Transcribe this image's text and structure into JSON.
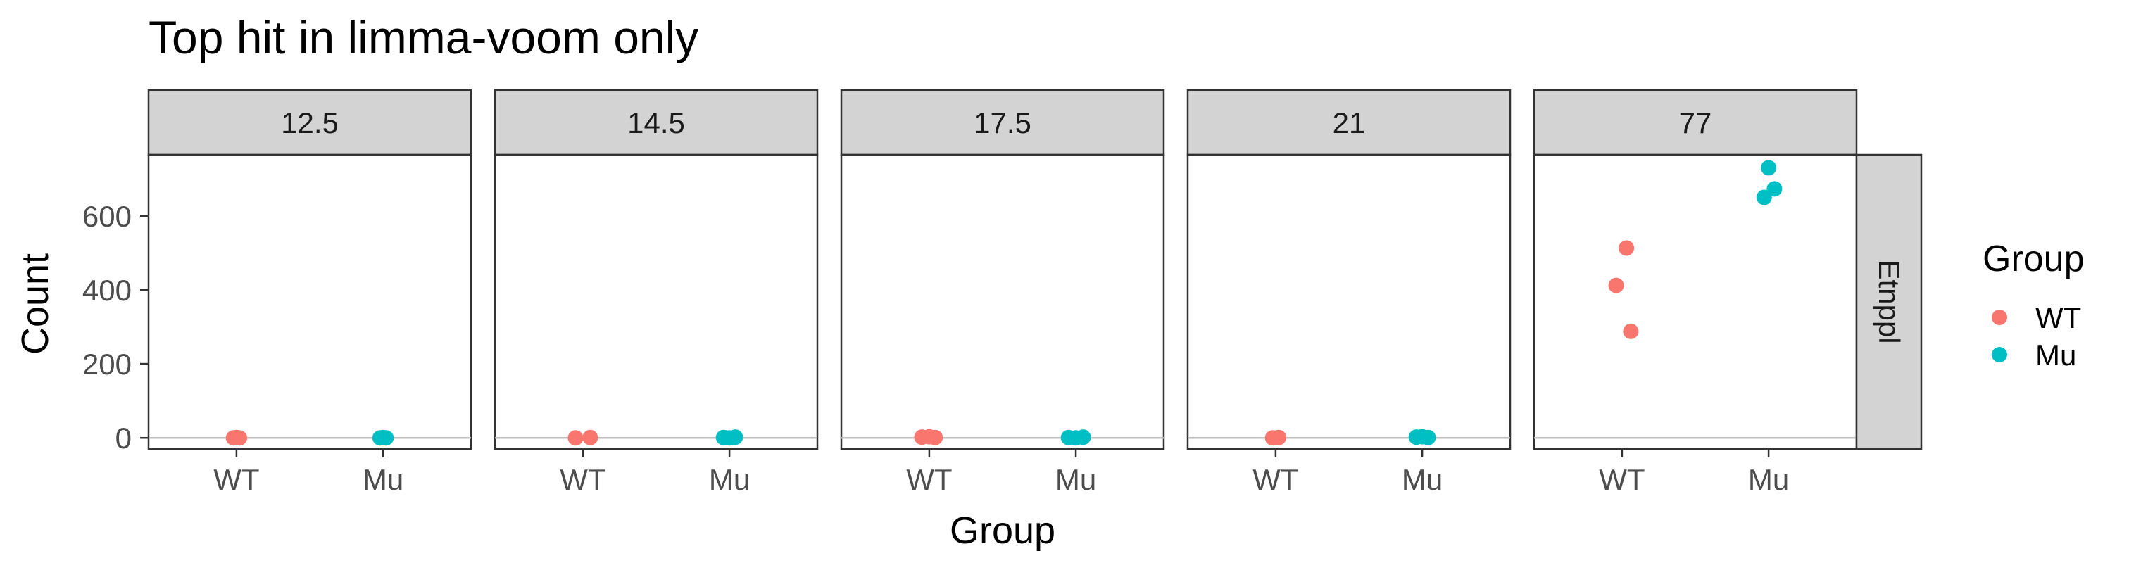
{
  "chart_data": {
    "type": "scatter",
    "title": "Top hit in limma-voom only",
    "xlabel": "Group",
    "ylabel": "Count",
    "categories": [
      "WT",
      "Mu"
    ],
    "ylim": [
      -30,
      765
    ],
    "yticks": [
      0,
      200,
      400,
      600
    ],
    "grid": false,
    "hline": 0,
    "row_strip": "Etnppl",
    "legend": {
      "title": "Group",
      "placement": "right",
      "entries": [
        {
          "label": "WT",
          "color": "#F8766D"
        },
        {
          "label": "Mu",
          "color": "#00BFC4"
        }
      ]
    },
    "facets": [
      {
        "label": "12.5",
        "points": [
          {
            "group": "WT",
            "x": 0.98,
            "y": 0
          },
          {
            "group": "WT",
            "x": 1.0,
            "y": 1
          },
          {
            "group": "WT",
            "x": 1.02,
            "y": 0
          },
          {
            "group": "Mu",
            "x": 1.98,
            "y": 0
          },
          {
            "group": "Mu",
            "x": 2.0,
            "y": 1
          },
          {
            "group": "Mu",
            "x": 2.02,
            "y": 0
          }
        ]
      },
      {
        "label": "14.5",
        "points": [
          {
            "group": "WT",
            "x": 0.95,
            "y": 0
          },
          {
            "group": "WT",
            "x": 1.05,
            "y": 1
          },
          {
            "group": "Mu",
            "x": 1.96,
            "y": 1
          },
          {
            "group": "Mu",
            "x": 2.0,
            "y": 0
          },
          {
            "group": "Mu",
            "x": 2.04,
            "y": 2
          }
        ]
      },
      {
        "label": "17.5",
        "points": [
          {
            "group": "WT",
            "x": 0.95,
            "y": 2
          },
          {
            "group": "WT",
            "x": 1.0,
            "y": 3
          },
          {
            "group": "WT",
            "x": 1.04,
            "y": 1
          },
          {
            "group": "Mu",
            "x": 1.95,
            "y": 1
          },
          {
            "group": "Mu",
            "x": 2.0,
            "y": 0
          },
          {
            "group": "Mu",
            "x": 2.05,
            "y": 2
          }
        ]
      },
      {
        "label": "21",
        "points": [
          {
            "group": "WT",
            "x": 0.98,
            "y": 0
          },
          {
            "group": "WT",
            "x": 1.02,
            "y": 1
          },
          {
            "group": "Mu",
            "x": 1.96,
            "y": 2
          },
          {
            "group": "Mu",
            "x": 2.0,
            "y": 3
          },
          {
            "group": "Mu",
            "x": 2.04,
            "y": 1
          }
        ]
      },
      {
        "label": "77",
        "points": [
          {
            "group": "WT",
            "x": 1.03,
            "y": 513
          },
          {
            "group": "WT",
            "x": 0.96,
            "y": 412
          },
          {
            "group": "WT",
            "x": 1.06,
            "y": 288
          },
          {
            "group": "Mu",
            "x": 2.0,
            "y": 730
          },
          {
            "group": "Mu",
            "x": 2.04,
            "y": 673
          },
          {
            "group": "Mu",
            "x": 1.97,
            "y": 650
          }
        ]
      }
    ]
  }
}
